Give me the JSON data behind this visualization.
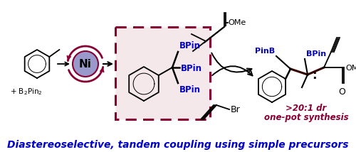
{
  "title": "Diastereoselective, tandem coupling using simple precursors",
  "title_color": "#0000CC",
  "title_fontsize": 10.0,
  "background_color": "#ffffff",
  "dr_line1": ">20:1 dr",
  "dr_line2": "one-pot synthesis",
  "dr_color": "#880033",
  "blue": "#0000CC",
  "black": "#000000",
  "darkred": "#880033",
  "ni_fill": "#9999CC",
  "box_fill": "#f5e8ea",
  "fig_width": 5.0,
  "fig_height": 2.14,
  "dpi": 100
}
